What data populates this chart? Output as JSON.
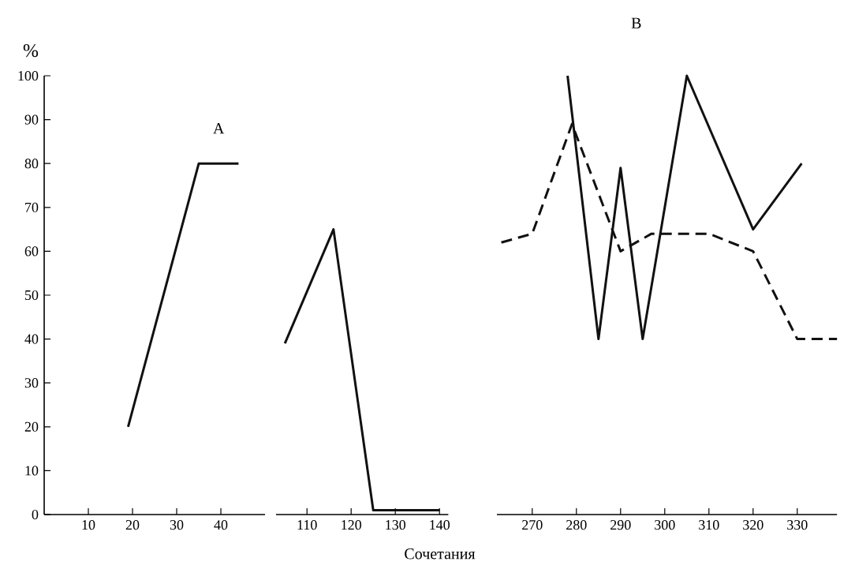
{
  "chart_data": [
    {
      "type": "line",
      "ylabel": "%",
      "annotations": [
        "A"
      ],
      "xlim": [
        0,
        50
      ],
      "xticks": [
        10,
        20,
        30,
        40
      ],
      "ylim": [
        0,
        100
      ],
      "yticks": [
        0,
        10,
        20,
        30,
        40,
        50,
        60,
        70,
        80,
        90,
        100
      ],
      "series": [
        {
          "color": "#111111",
          "line_style": "solid",
          "x": [
            19,
            35,
            44
          ],
          "values": [
            20,
            80,
            80
          ]
        }
      ]
    },
    {
      "type": "line",
      "xlabel": "Сочетания",
      "tick_labels": "x",
      "xlim": [
        103,
        142
      ],
      "xticks": [
        110,
        120,
        130,
        140
      ],
      "ylim": [
        0,
        100
      ],
      "series": [
        {
          "color": "#111111",
          "line_style": "solid",
          "x": [
            105,
            116,
            125,
            140
          ],
          "values": [
            39,
            65,
            1,
            1
          ]
        }
      ]
    },
    {
      "type": "line",
      "annotations": [
        "B"
      ],
      "tick_labels": "x",
      "xlim": [
        262,
        339
      ],
      "xticks": [
        270,
        280,
        290,
        300,
        310,
        320,
        330
      ],
      "ylim": [
        0,
        100
      ],
      "series": [
        {
          "color": "#111111",
          "line_style": "solid",
          "x": [
            278,
            285,
            290,
            295,
            305,
            320,
            331
          ],
          "values": [
            100,
            40,
            79,
            40,
            100,
            65,
            80
          ]
        },
        {
          "color": "#111111",
          "line_style": "dashed",
          "x": [
            263,
            270,
            279,
            290,
            297,
            310,
            320,
            330,
            339
          ],
          "values": [
            62,
            64,
            89,
            60,
            64,
            64,
            60,
            40,
            40
          ]
        }
      ]
    }
  ]
}
